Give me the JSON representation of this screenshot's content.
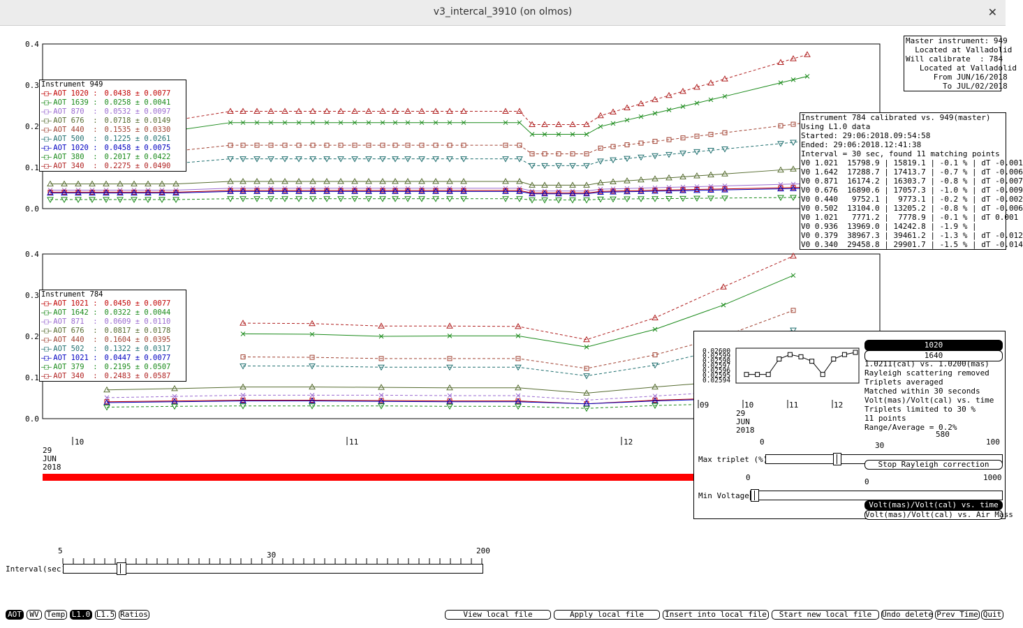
{
  "window": {
    "title": "v3_intercal_3910 (on olmos)",
    "close_glyph": "✕"
  },
  "colors": {
    "c1020": "#c00000",
    "c1639": "#1a8a1a",
    "c870": "#9a6ad0",
    "c676": "#556b2f",
    "c440": "#a04030",
    "c500": "#1f6f6f",
    "c1020b": "#0000c0",
    "c380": "#1a8a1a",
    "c340": "#b02020",
    "date_bar": "#ff0000"
  },
  "master_box": {
    "lines": [
      "Master instrument: 949",
      "  Located at Valladolid",
      "Will calibrate  : 784",
      "   Located at Valladolid",
      "      From JUN/16/2018",
      "        To JUL/02/2018"
    ]
  },
  "calib_box": {
    "lines": [
      "Instrument 784 calibrated vs. 949(master)",
      "Using L1.0 data",
      "Started: 29:06:2018.09:54:58",
      "Ended: 29:06:2018.12:41:38",
      "Interval = 30 sec, found 11 matching points",
      "V0 1.021  15798.9 | 15819.1 | -0.1 % | dT -0.001",
      "V0 1.642  17288.7 | 17413.7 | -0.7 % | dT -0.006",
      "V0 0.871  16174.2 | 16303.7 | -0.8 % | dT -0.007",
      "V0 0.676  16890.6 | 17057.3 | -1.0 % | dT -0.009",
      "V0 0.440   9752.1 |  9773.1 | -0.2 % | dT -0.002",
      "V0 0.502  13104.0 | 13205.2 | -0.8 % | dT -0.006",
      "V0 1.021   7771.2 |  7778.9 | -0.1 % | dT 0.001",
      "V0 0.936  13969.0 | 14242.8 | -1.9 % |",
      "V0 0.379  38967.3 | 39461.2 | -1.3 % | dT -0.012",
      "V0 0.340  29458.8 | 29901.7 | -1.5 % | dT -0.014"
    ]
  },
  "legend949": {
    "title": "Instrument 949",
    "rows": [
      {
        "label": "AOT 1020 :",
        "value": "0.0438 ± 0.0077",
        "color": "#c00000"
      },
      {
        "label": "AOT 1639 :",
        "value": "0.0258 ± 0.0041",
        "color": "#1a8a1a"
      },
      {
        "label": "AOT 870  :",
        "value": "0.0532 ± 0.0097",
        "color": "#9a6ad0"
      },
      {
        "label": "AOT 676  :",
        "value": "0.0718 ± 0.0149",
        "color": "#556b2f"
      },
      {
        "label": "AOT 440  :",
        "value": "0.1535 ± 0.0330",
        "color": "#a04030"
      },
      {
        "label": "AOT 500  :",
        "value": "0.1225 ± 0.0261",
        "color": "#1f6f6f"
      },
      {
        "label": "AOT 1020 :",
        "value": "0.0458 ± 0.0075",
        "color": "#0000c0"
      },
      {
        "label": "AOT 380  :",
        "value": "0.2017 ± 0.0422",
        "color": "#1a8a1a"
      },
      {
        "label": "AOT 340  :",
        "value": "0.2275 ± 0.0490",
        "color": "#b02020"
      }
    ]
  },
  "legend784": {
    "title": "Instrument 784",
    "rows": [
      {
        "label": "AOT 1021 :",
        "value": "0.0450 ± 0.0077",
        "color": "#c00000"
      },
      {
        "label": "AOT 1642 :",
        "value": "0.0322 ± 0.0044",
        "color": "#1a8a1a"
      },
      {
        "label": "AOT 871  :",
        "value": "0.0609 ± 0.0110",
        "color": "#9a6ad0"
      },
      {
        "label": "AOT 676  :",
        "value": "0.0817 ± 0.0178",
        "color": "#556b2f"
      },
      {
        "label": "AOT 440  :",
        "value": "0.1604 ± 0.0395",
        "color": "#a04030"
      },
      {
        "label": "AOT 502  :",
        "value": "0.1322 ± 0.0317",
        "color": "#1f6f6f"
      },
      {
        "label": "AOT 1021 :",
        "value": "0.0447 ± 0.0077",
        "color": "#0000c0"
      },
      {
        "label": "AOT 379  :",
        "value": "0.2195 ± 0.0507",
        "color": "#1a8a1a"
      },
      {
        "label": "AOT 340  :",
        "value": "0.2483 ± 0.0587",
        "color": "#b02020"
      }
    ]
  },
  "axes": {
    "y_ticks": [
      "0.4",
      "0.3",
      "0.2",
      "0.1",
      "0.0"
    ],
    "x_ticks": [
      "10",
      "11",
      "12"
    ],
    "date_lines": [
      "29",
      "JUN",
      "2018"
    ]
  },
  "ratio_panel": {
    "y_ticks": [
      "0.02600",
      "0.02599",
      "0.02598",
      "0.02597",
      "0.02596",
      "0.02595",
      "0.02594"
    ],
    "x_ticks": [
      "09",
      "10",
      "11",
      "12"
    ],
    "date_lines": [
      "29",
      "JUN",
      "2018"
    ],
    "series": [
      0.02595,
      0.02595,
      0.02595,
      0.025985,
      0.025995,
      0.02599,
      0.02598,
      0.02595,
      0.025985,
      0.025995,
      0.026
    ],
    "wl_selected": "1020",
    "wl_other": "1640",
    "info_lines": [
      "1.0211(cal) vs. 1.0200(mas)",
      "Rayleigh scattering removed",
      "Triplets averaged",
      "Matched within 30 seconds",
      "Volt(mas)/Volt(cal) vs. time",
      "Triplets limited to 30 %",
      "11 points",
      "Range/Average = 0.2%"
    ],
    "rayleigh_button": "Stop Rayleigh correction",
    "max_triplet": {
      "label": "Max triplet (%)",
      "min": "0",
      "mid": "30",
      "max": "100",
      "value": 30,
      "hidden": "580"
    },
    "min_voltage": {
      "label": "Min Voltage",
      "min": "0",
      "max": "1000",
      "value": 0
    },
    "mode_selected": "Volt(mas)/Volt(cal) vs. time",
    "mode_other": "Volt(mas)/Volt(cal) vs. Air Mass"
  },
  "interval_slider": {
    "label": "Interval(sec)",
    "min": "5",
    "mid": "30",
    "max": "200",
    "value": 30
  },
  "bottom_left": [
    {
      "label": "AOT",
      "active": true
    },
    {
      "label": "WV",
      "active": false
    },
    {
      "label": "Temp",
      "active": false
    },
    {
      "label": "L1.0",
      "active": true
    },
    {
      "label": "L1.5",
      "active": false
    },
    {
      "label": "Ratios",
      "active": false
    }
  ],
  "bottom_right": [
    "View local file",
    "Apply local file",
    "Insert into local file",
    "Start new local file",
    "Undo delete",
    "Prev Time",
    "Quit"
  ]
}
